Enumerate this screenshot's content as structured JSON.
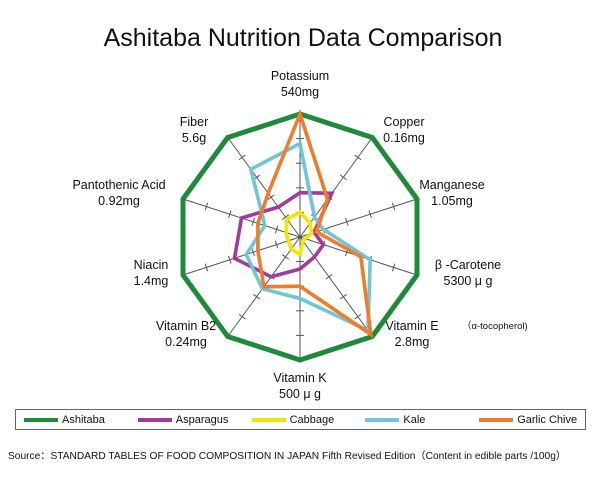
{
  "title": "Ashitaba Nutrition Data Comparison",
  "source": "Source：STANDARD TABLES OF FOOD COMPOSITION IN JAPAN Fifth Revised Edition（Content in edible parts /100g）",
  "chart_data": {
    "type": "radar",
    "title": "Ashitaba Nutrition Data Comparison",
    "axes": [
      {
        "name": "Potassium",
        "max_label": "540mg"
      },
      {
        "name": "Copper",
        "max_label": "0.16mg"
      },
      {
        "name": "Manganese",
        "max_label": "1.05mg"
      },
      {
        "name": "β -Carotene",
        "max_label": "5300 μ g"
      },
      {
        "name": "Vitamin E",
        "note": "（α-tocopherol)",
        "max_label": "2.8mg"
      },
      {
        "name": "Vitamin K",
        "max_label": "500 μ g"
      },
      {
        "name": "Vitamin B2",
        "max_label": "0.24mg"
      },
      {
        "name": "Niacin",
        "max_label": "1.4mg"
      },
      {
        "name": "Pantothenic Acid",
        "max_label": "0.92mg"
      },
      {
        "name": "Fiber",
        "max_label": "5.6g"
      }
    ],
    "scale": [
      0,
      5
    ],
    "ticks": [
      1,
      2,
      3,
      4
    ],
    "series": [
      {
        "name": "Ashitaba",
        "color": "#1f8a3c",
        "values": [
          5,
          5,
          5,
          5,
          5,
          5,
          5,
          5,
          5,
          5
        ]
      },
      {
        "name": "Asparagus",
        "color": "#a23a9e",
        "values": [
          1.8,
          2.2,
          0.6,
          1.0,
          1.0,
          1.3,
          2.0,
          2.8,
          2.5,
          1.5
        ]
      },
      {
        "name": "Cabbage",
        "color": "#f2e600",
        "values": [
          1.0,
          0.7,
          0.5,
          0.2,
          0.2,
          0.7,
          0.6,
          0.5,
          0.6,
          0.9
        ]
      },
      {
        "name": "Kale",
        "color": "#6ec6d8",
        "values": [
          3.8,
          1.0,
          1.0,
          3.0,
          4.7,
          2.5,
          2.6,
          2.3,
          1.5,
          3.4
        ]
      },
      {
        "name": "Garlic Chive",
        "color": "#f07c2a",
        "values": [
          5.0,
          1.9,
          0.7,
          2.6,
          4.9,
          2.0,
          2.5,
          1.8,
          1.8,
          2.2
        ]
      }
    ]
  },
  "legend": [
    {
      "label": "Ashitaba",
      "color": "#1f8a3c"
    },
    {
      "label": "Asparagus",
      "color": "#a23a9e"
    },
    {
      "label": "Cabbage",
      "color": "#f2e600"
    },
    {
      "label": "Kale",
      "color": "#6ec6d8"
    },
    {
      "label": "Garlic Chive",
      "color": "#f07c2a"
    }
  ]
}
